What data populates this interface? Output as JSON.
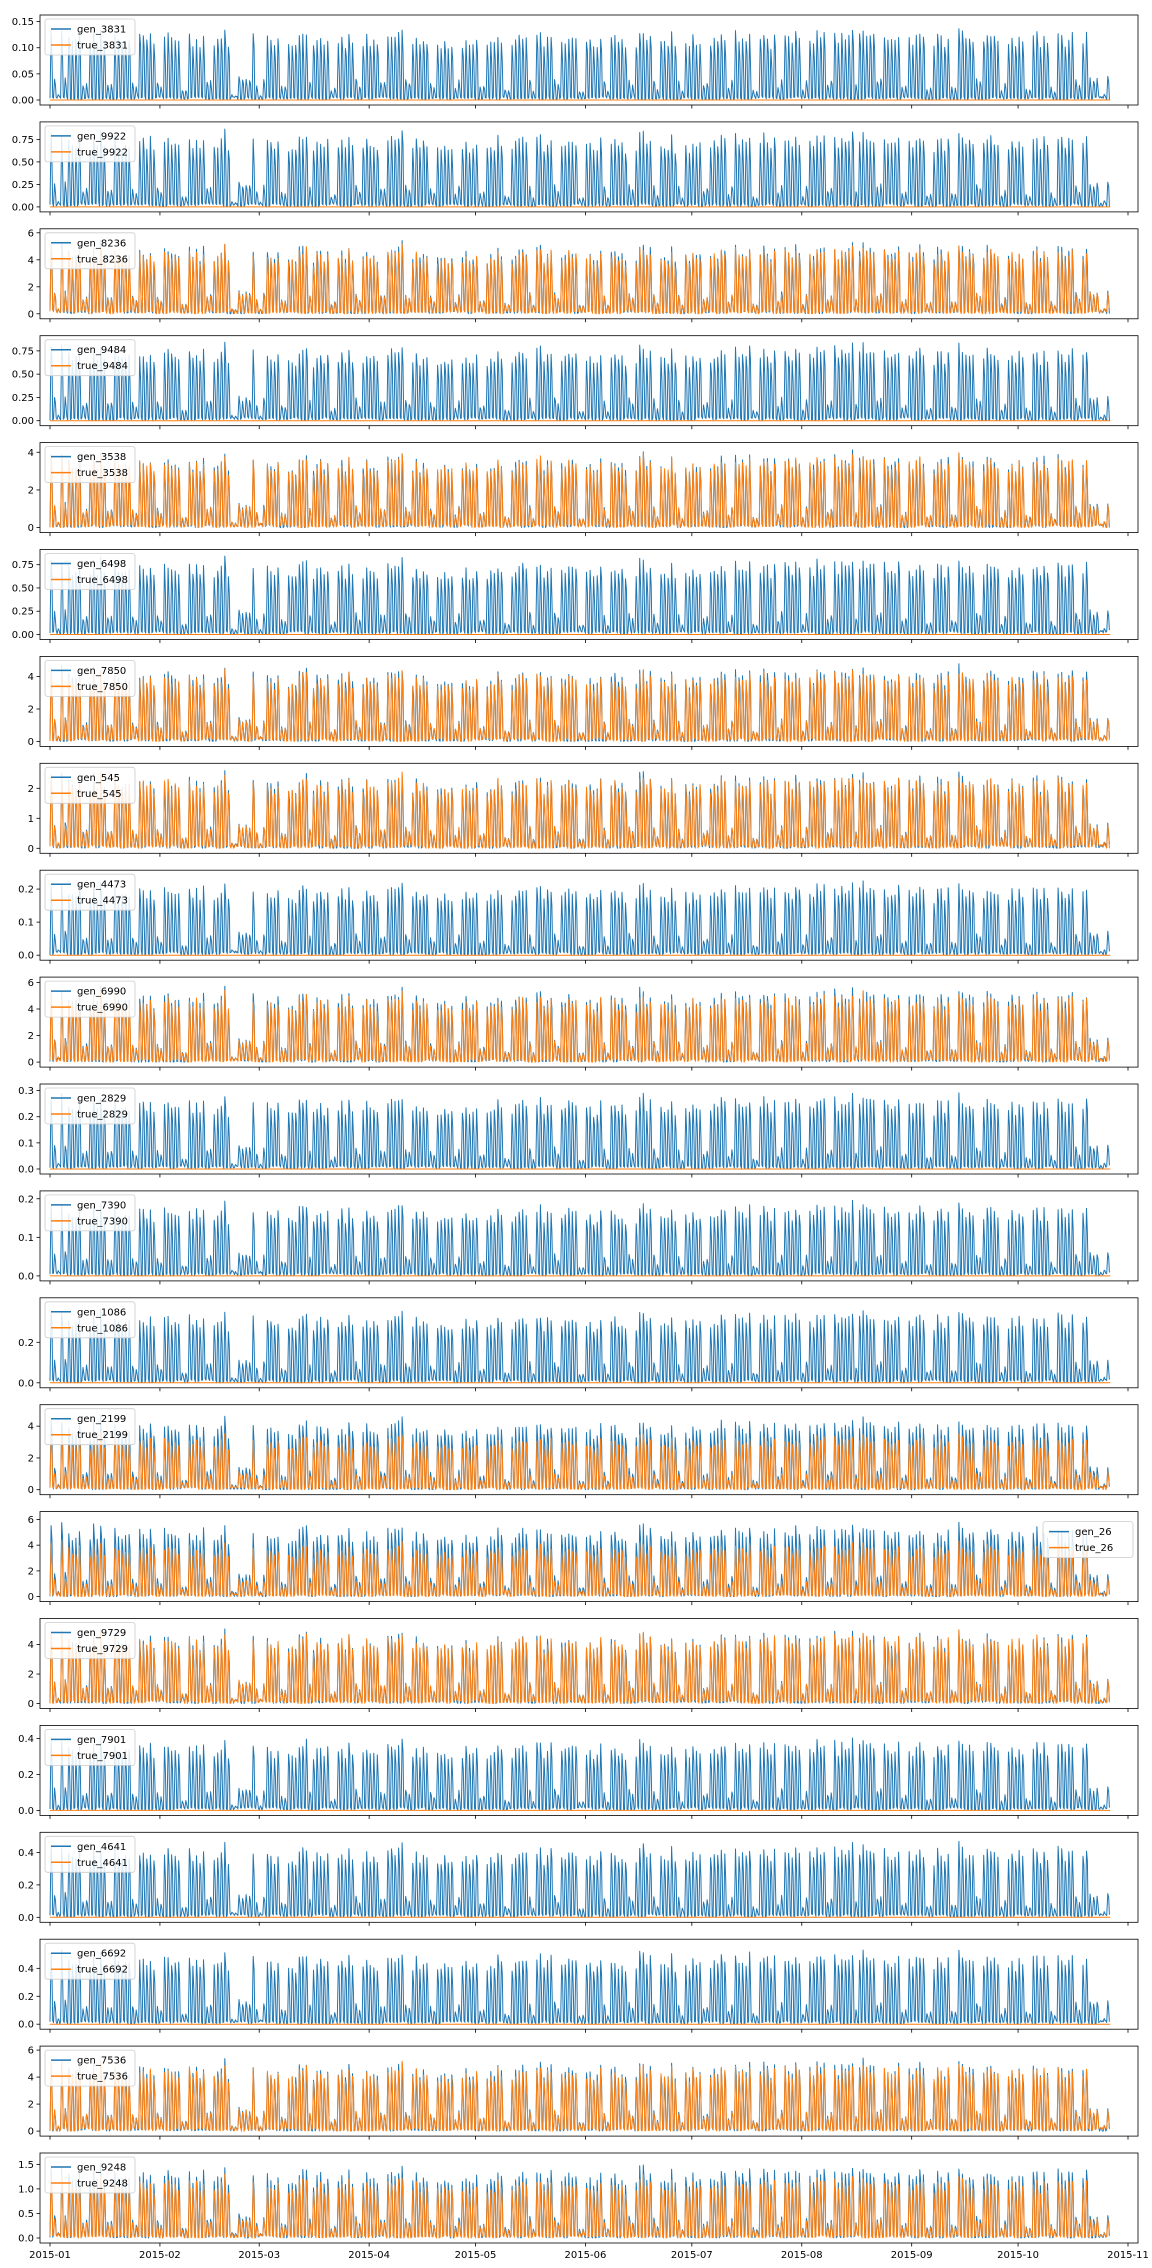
{
  "chart_data": {
    "type": "line",
    "colors": {
      "gen": "#1f77b4",
      "true": "#ff7f0e"
    },
    "shared_x": {
      "range": [
        "2015-01-01",
        "2015-11-01"
      ],
      "data_start": "2015-01-01",
      "data_end": "2015-10-27",
      "ticks": [
        "2015-01",
        "2015-02",
        "2015-03",
        "2015-04",
        "2015-05",
        "2015-06",
        "2015-07",
        "2015-08",
        "2015-09",
        "2015-10",
        "2015-11"
      ]
    },
    "panels": [
      {
        "id": "3831",
        "ylim": [
          0,
          0.155
        ],
        "yticks": [
          "0.00",
          "0.05",
          "0.10",
          "0.15"
        ],
        "gen_peak": 0.13,
        "true_peak": 0.0,
        "legend": "upper left",
        "series": [
          {
            "name": "gen_3831",
            "peak": 0.13
          },
          {
            "name": "true_3831",
            "peak": 0.0
          }
        ]
      },
      {
        "id": "9922",
        "ylim": [
          0,
          0.9
        ],
        "yticks": [
          "0.00",
          "0.25",
          "0.50",
          "0.75"
        ],
        "gen_peak": 0.8,
        "true_peak": 0.0,
        "legend": "upper left",
        "series": [
          {
            "name": "gen_9922",
            "peak": 0.8
          },
          {
            "name": "true_9922",
            "peak": 0.0
          }
        ]
      },
      {
        "id": "8236",
        "ylim": [
          0,
          6
        ],
        "yticks": [
          "0",
          "2",
          "4",
          "6"
        ],
        "gen_peak": 5.0,
        "true_peak": 4.8,
        "legend": "upper left",
        "series": [
          {
            "name": "gen_8236",
            "peak": 5.0
          },
          {
            "name": "true_8236",
            "peak": 4.8
          }
        ]
      },
      {
        "id": "9484",
        "ylim": [
          0,
          0.87
        ],
        "yticks": [
          "0.00",
          "0.25",
          "0.50",
          "0.75"
        ],
        "gen_peak": 0.78,
        "true_peak": 0.0,
        "legend": "upper left",
        "series": [
          {
            "name": "gen_9484",
            "peak": 0.78
          },
          {
            "name": "true_9484",
            "peak": 0.0
          }
        ]
      },
      {
        "id": "3538",
        "ylim": [
          0,
          4.3
        ],
        "yticks": [
          "0",
          "2",
          "4"
        ],
        "gen_peak": 3.8,
        "true_peak": 3.7,
        "legend": "upper left",
        "series": [
          {
            "name": "gen_3538",
            "peak": 3.8
          },
          {
            "name": "true_3538",
            "peak": 3.7
          }
        ]
      },
      {
        "id": "6498",
        "ylim": [
          0,
          0.87
        ],
        "yticks": [
          "0.00",
          "0.25",
          "0.50",
          "0.75"
        ],
        "gen_peak": 0.78,
        "true_peak": 0.0,
        "legend": "upper left",
        "series": [
          {
            "name": "gen_6498",
            "peak": 0.78
          },
          {
            "name": "true_6498",
            "peak": 0.0
          }
        ]
      },
      {
        "id": "7850",
        "ylim": [
          0,
          5.0
        ],
        "yticks": [
          "0",
          "2",
          "4"
        ],
        "gen_peak": 4.4,
        "true_peak": 4.2,
        "legend": "upper left",
        "series": [
          {
            "name": "gen_7850",
            "peak": 4.4
          },
          {
            "name": "true_7850",
            "peak": 4.2
          }
        ]
      },
      {
        "id": "545",
        "ylim": [
          0,
          2.7
        ],
        "yticks": [
          "0",
          "1",
          "2"
        ],
        "gen_peak": 2.4,
        "true_peak": 2.35,
        "legend": "upper left",
        "series": [
          {
            "name": "gen_545",
            "peak": 2.4
          },
          {
            "name": "true_545",
            "peak": 2.35
          }
        ]
      },
      {
        "id": "4473",
        "ylim": [
          0,
          0.245
        ],
        "yticks": [
          "0.0",
          "0.1",
          "0.2"
        ],
        "gen_peak": 0.21,
        "true_peak": 0.0,
        "legend": "upper left",
        "series": [
          {
            "name": "gen_4473",
            "peak": 0.21
          },
          {
            "name": "true_4473",
            "peak": 0.0
          }
        ]
      },
      {
        "id": "6990",
        "ylim": [
          0,
          6.1
        ],
        "yticks": [
          "0",
          "2",
          "4",
          "6"
        ],
        "gen_peak": 5.3,
        "true_peak": 5.0,
        "legend": "upper left",
        "series": [
          {
            "name": "gen_6990",
            "peak": 5.3
          },
          {
            "name": "true_6990",
            "peak": 5.0
          }
        ]
      },
      {
        "id": "2829",
        "ylim": [
          0,
          0.31
        ],
        "yticks": [
          "0.0",
          "0.1",
          "0.2",
          "0.3"
        ],
        "gen_peak": 0.27,
        "true_peak": 0.0,
        "legend": "upper left",
        "series": [
          {
            "name": "gen_2829",
            "peak": 0.27
          },
          {
            "name": "true_2829",
            "peak": 0.0
          }
        ]
      },
      {
        "id": "7390",
        "ylim": [
          0,
          0.21
        ],
        "yticks": [
          "0.0",
          "0.1",
          "0.2"
        ],
        "gen_peak": 0.18,
        "true_peak": 0.0,
        "legend": "upper left",
        "series": [
          {
            "name": "gen_7390",
            "peak": 0.18
          },
          {
            "name": "true_7390",
            "peak": 0.0
          }
        ]
      },
      {
        "id": "1086",
        "ylim": [
          0,
          0.4
        ],
        "yticks": [
          "0.0",
          "0.2"
        ],
        "gen_peak": 0.34,
        "true_peak": 0.0,
        "legend": "upper left",
        "series": [
          {
            "name": "gen_1086",
            "peak": 0.34
          },
          {
            "name": "true_1086",
            "peak": 0.0
          }
        ]
      },
      {
        "id": "2199",
        "ylim": [
          0,
          5.1
        ],
        "yticks": [
          "0",
          "2",
          "4"
        ],
        "gen_peak": 4.3,
        "true_peak": 3.3,
        "legend": "upper left",
        "series": [
          {
            "name": "gen_2199",
            "peak": 4.3
          },
          {
            "name": "true_2199",
            "peak": 3.3
          }
        ]
      },
      {
        "id": "26",
        "ylim": [
          0,
          6.3
        ],
        "yticks": [
          "0",
          "2",
          "4",
          "6"
        ],
        "gen_peak": 5.4,
        "true_peak": 4.0,
        "legend": "right",
        "series": [
          {
            "name": "gen_26",
            "peak": 5.4
          },
          {
            "name": "true_26",
            "peak": 4.0
          }
        ]
      },
      {
        "id": "9729",
        "ylim": [
          0,
          5.5
        ],
        "yticks": [
          "0",
          "2",
          "4"
        ],
        "gen_peak": 4.7,
        "true_peak": 4.6,
        "legend": "upper left",
        "series": [
          {
            "name": "gen_9729",
            "peak": 4.7
          },
          {
            "name": "true_9729",
            "peak": 4.6
          }
        ]
      },
      {
        "id": "7901",
        "ylim": [
          0,
          0.45
        ],
        "yticks": [
          "0.0",
          "0.2",
          "0.4"
        ],
        "gen_peak": 0.38,
        "true_peak": 0.0,
        "legend": "upper left",
        "series": [
          {
            "name": "gen_7901",
            "peak": 0.38
          },
          {
            "name": "true_7901",
            "peak": 0.0
          }
        ]
      },
      {
        "id": "4641",
        "ylim": [
          0,
          0.5
        ],
        "yticks": [
          "0.0",
          "0.2",
          "0.4"
        ],
        "gen_peak": 0.43,
        "true_peak": 0.0,
        "legend": "upper left",
        "series": [
          {
            "name": "gen_4641",
            "peak": 0.43
          },
          {
            "name": "true_4641",
            "peak": 0.0
          }
        ]
      },
      {
        "id": "6692",
        "ylim": [
          0,
          0.58
        ],
        "yticks": [
          "0.0",
          "0.2",
          "0.4"
        ],
        "gen_peak": 0.5,
        "true_peak": 0.0,
        "legend": "upper left",
        "series": [
          {
            "name": "gen_6692",
            "peak": 0.5
          },
          {
            "name": "true_6692",
            "peak": 0.0
          }
        ]
      },
      {
        "id": "7536",
        "ylim": [
          0,
          6.0
        ],
        "yticks": [
          "0",
          "2",
          "4",
          "6"
        ],
        "gen_peak": 5.0,
        "true_peak": 4.8,
        "legend": "upper left",
        "series": [
          {
            "name": "gen_7536",
            "peak": 5.0
          },
          {
            "name": "true_7536",
            "peak": 4.8
          }
        ]
      },
      {
        "id": "9248",
        "ylim": [
          0,
          1.65
        ],
        "yticks": [
          "0.0",
          "0.5",
          "1.0",
          "1.5"
        ],
        "gen_peak": 1.4,
        "true_peak": 1.2,
        "legend": "upper left",
        "series": [
          {
            "name": "gen_9248",
            "peak": 1.4
          },
          {
            "name": "true_9248",
            "peak": 1.2
          }
        ]
      }
    ]
  }
}
